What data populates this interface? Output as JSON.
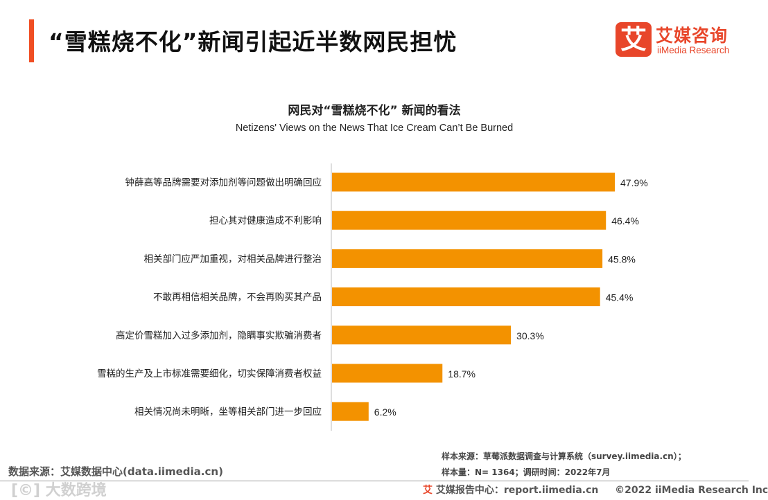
{
  "header": {
    "title": "“雪糕烧不化”新闻引起近半数网民担忧",
    "logo_mark": "艾",
    "logo_cn": "艾媒咨询",
    "logo_en": "iiMedia Research"
  },
  "colors": {
    "accent": "#f04e23",
    "bar": "#f39200",
    "logo": "#e8462a"
  },
  "chart_data": {
    "type": "bar",
    "orientation": "horizontal",
    "title": "网民对“雪糕烧不化” 新闻的看法",
    "subtitle": "Netizens' Views on the News That Ice Cream Can’t Be Burned",
    "categories": [
      "钟薛高等品牌需要对添加剂等问题做出明确回应",
      "担心其对健康造成不利影响",
      "相关部门应严加重视，对相关品牌进行整治",
      "不敢再相信相关品牌，不会再购买其产品",
      "高定价雪糕加入过多添加剂，隐瞒事实欺骗消费者",
      "雪糕的生产及上市标准需要细化，切实保障消费者权益",
      "相关情况尚未明晰，坐等相关部门进一步回应"
    ],
    "values": [
      47.9,
      46.4,
      45.8,
      45.4,
      30.3,
      18.7,
      6.2
    ],
    "value_labels": [
      "47.9%",
      "46.4%",
      "45.8%",
      "45.4%",
      "30.3%",
      "18.7%",
      "6.2%"
    ],
    "unit": "%",
    "xlim": [
      0,
      50
    ],
    "xlabel": "",
    "ylabel": "",
    "grid": false
  },
  "footer": {
    "data_source": "数据来源：艾媒数据中心(data.iimedia.cn)",
    "sample_source": "样本来源：草莓派数据调查与计算系统（survey.iimedia.cn）；",
    "sample_size": "样本量：N= 1364；调研时间：2022年7月",
    "report_icon": "艾",
    "report_center": "艾媒报告中心：report.iimedia.cn",
    "copyright": "©2022  iiMedia Research  Inc",
    "watermark": "[©] 大数跨境"
  }
}
